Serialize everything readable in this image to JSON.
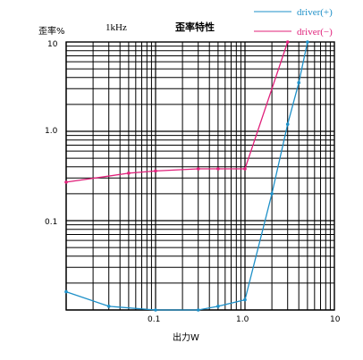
{
  "chart_data": {
    "type": "line",
    "title": "歪率特性",
    "subtitle": "1kHz",
    "xlabel": "出力W",
    "ylabel": "歪率%",
    "x_scale": "log",
    "y_scale": "log",
    "xlim": [
      0.01,
      10
    ],
    "ylim": [
      0.01,
      10
    ],
    "grid": true,
    "legend_position": "top-right",
    "x_tick_labels": [
      "0.1",
      "1.0",
      "10"
    ],
    "y_tick_labels": [
      "10",
      "1.0",
      "0.1"
    ],
    "series": [
      {
        "name": "driver(+)",
        "color": "#1e90c8",
        "points": [
          [
            0.01,
            0.016
          ],
          [
            0.03,
            0.011
          ],
          [
            0.1,
            0.01
          ],
          [
            0.3,
            0.01
          ],
          [
            0.5,
            0.011
          ],
          [
            1.0,
            0.013
          ],
          [
            2.0,
            0.2
          ],
          [
            3.0,
            1.2
          ],
          [
            4.0,
            3.5
          ],
          [
            5.0,
            10
          ]
        ]
      },
      {
        "name": "driver(−)",
        "color": "#e0207a",
        "points": [
          [
            0.01,
            0.27
          ],
          [
            0.05,
            0.34
          ],
          [
            0.1,
            0.36
          ],
          [
            0.3,
            0.38
          ],
          [
            0.5,
            0.38
          ],
          [
            1.0,
            0.38
          ],
          [
            3.0,
            10
          ]
        ]
      }
    ]
  }
}
